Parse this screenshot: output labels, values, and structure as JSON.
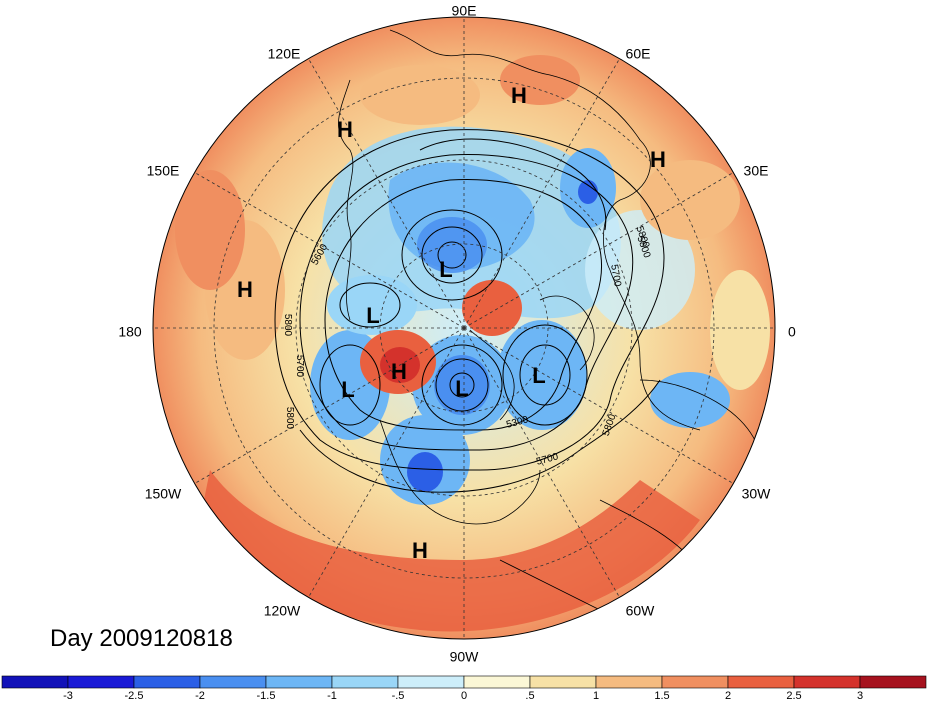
{
  "title": "Day 2009120818",
  "longitude_labels": [
    "90E",
    "60E",
    "30E",
    "0",
    "30W",
    "60W",
    "90W",
    "120W",
    "150W",
    "180",
    "150E",
    "120E"
  ],
  "pressure_centers": [
    {
      "label": "H",
      "id": "h-siberia"
    },
    {
      "label": "H",
      "id": "h-east-asia"
    },
    {
      "label": "H",
      "id": "h-urals"
    },
    {
      "label": "H",
      "id": "h-pacific"
    },
    {
      "label": "L",
      "id": "l-arctic"
    },
    {
      "label": "L",
      "id": "l-beaufort"
    },
    {
      "label": "H",
      "id": "h-alaska"
    },
    {
      "label": "L",
      "id": "l-bering"
    },
    {
      "label": "L",
      "id": "l-hudson"
    },
    {
      "label": "L",
      "id": "l-greenland"
    },
    {
      "label": "H",
      "id": "h-mexico"
    }
  ],
  "contour_labels": [
    "5600",
    "5800",
    "5700",
    "5800",
    "5800",
    "5700",
    "5300",
    "5800",
    "5700",
    "5800"
  ],
  "colorbar": {
    "ticks": [
      "-3",
      "-2.5",
      "-2",
      "-1.5",
      "-1",
      "-.5",
      "0",
      ".5",
      "1",
      "1.5",
      "2",
      "2.5",
      "3"
    ],
    "colors": [
      "#1a1ad6",
      "#2b5fe6",
      "#4a8ff0",
      "#6db6f5",
      "#9ad6f7",
      "#cdeefa",
      "#fbf7d6",
      "#f7e1a6",
      "#f5bb80",
      "#f08f60",
      "#e9603f",
      "#d4322c",
      "#a6121e"
    ]
  }
}
